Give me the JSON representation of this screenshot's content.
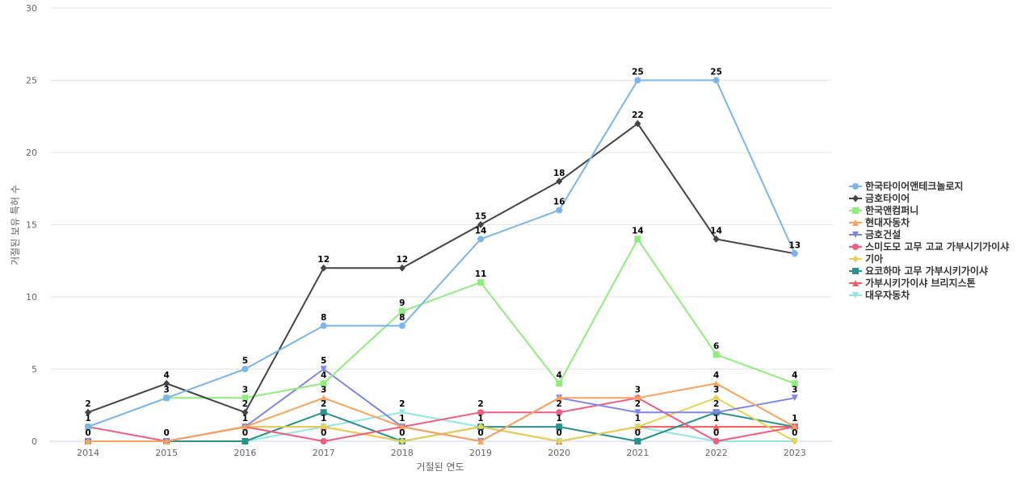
{
  "chart_data": {
    "type": "line",
    "title": "",
    "xlabel": "거절된 연도",
    "ylabel": "거절된 보유 특허 수",
    "categories": [
      "2014",
      "2015",
      "2016",
      "2017",
      "2018",
      "2019",
      "2020",
      "2021",
      "2022",
      "2023"
    ],
    "ylim": [
      0,
      30
    ],
    "yticks": [
      0,
      5,
      10,
      15,
      20,
      25,
      30
    ],
    "grid": true,
    "legend_position": "right",
    "series": [
      {
        "name": "한국타이어앤테크놀로지",
        "color": "#7cb5ec",
        "marker": "circle",
        "values": [
          1,
          3,
          5,
          8,
          8,
          14,
          16,
          25,
          25,
          13
        ]
      },
      {
        "name": "금호타이어",
        "color": "#434348",
        "marker": "diamond",
        "values": [
          2,
          4,
          2,
          12,
          12,
          15,
          18,
          22,
          14,
          13
        ]
      },
      {
        "name": "한국앤컴퍼니",
        "color": "#90ed7d",
        "marker": "square",
        "values": [
          1,
          3,
          3,
          4,
          9,
          11,
          4,
          14,
          6,
          4
        ]
      },
      {
        "name": "현대자동차",
        "color": "#f7a35c",
        "marker": "triangle",
        "values": [
          0,
          0,
          1,
          3,
          1,
          0,
          3,
          3,
          4,
          1
        ]
      },
      {
        "name": "금호건설",
        "color": "#8085e9",
        "marker": "triangle-down",
        "values": [
          0,
          0,
          1,
          5,
          1,
          0,
          3,
          2,
          2,
          3
        ]
      },
      {
        "name": "스미도모 고무 고교 가부시기가이샤",
        "color": "#f15c80",
        "marker": "circle",
        "values": [
          1,
          0,
          1,
          0,
          1,
          2,
          2,
          3,
          0,
          1
        ]
      },
      {
        "name": "기아",
        "color": "#e4d354",
        "marker": "diamond",
        "values": [
          0,
          0,
          1,
          1,
          0,
          1,
          0,
          1,
          3,
          0
        ]
      },
      {
        "name": "요코하마 고무 가부시키가이샤",
        "color": "#2b908f",
        "marker": "square",
        "values": [
          0,
          0,
          0,
          2,
          0,
          1,
          1,
          0,
          2,
          1
        ]
      },
      {
        "name": "가부시키가이샤 브리지스톤",
        "color": "#f45b5b",
        "marker": "triangle",
        "values": [
          0,
          0,
          1,
          1,
          0,
          1,
          0,
          1,
          1,
          1
        ]
      },
      {
        "name": "대우자동차",
        "color": "#91e8e1",
        "marker": "triangle-down",
        "values": [
          0,
          0,
          0,
          1,
          2,
          1,
          0,
          1,
          0,
          0
        ]
      }
    ],
    "data_labels": [
      {
        "year": "2014",
        "values": [
          2,
          1,
          0
        ]
      },
      {
        "year": "2015",
        "values": [
          4,
          3,
          0
        ]
      },
      {
        "year": "2016",
        "values": [
          5,
          3,
          2,
          1,
          0
        ]
      },
      {
        "year": "2017",
        "values": [
          12,
          8,
          5,
          4,
          3,
          2,
          1,
          0
        ]
      },
      {
        "year": "2018",
        "values": [
          12,
          9,
          8,
          2,
          1,
          0
        ]
      },
      {
        "year": "2019",
        "values": [
          15,
          14,
          11,
          2,
          1,
          0
        ]
      },
      {
        "year": "2020",
        "values": [
          18,
          16,
          4,
          2,
          1,
          0
        ]
      },
      {
        "year": "2021",
        "values": [
          25,
          22,
          14,
          3,
          2,
          1,
          0
        ]
      },
      {
        "year": "2022",
        "values": [
          25,
          14,
          6,
          4,
          3,
          2,
          1,
          0
        ]
      },
      {
        "year": "2023",
        "values": [
          13,
          4,
          3,
          1,
          0
        ]
      }
    ]
  }
}
